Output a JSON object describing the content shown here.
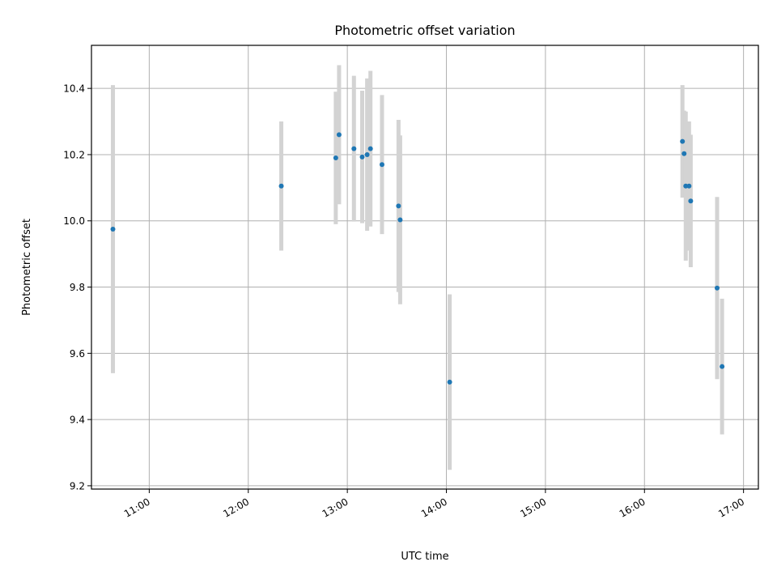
{
  "chart_data": {
    "type": "scatter",
    "title": "Photometric offset variation",
    "xlabel": "UTC time",
    "ylabel": "Photometric offset",
    "x_tick_labels": [
      "11:00",
      "12:00",
      "13:00",
      "14:00",
      "15:00",
      "16:00",
      "17:00"
    ],
    "y_tick_labels": [
      "9.2",
      "9.4",
      "9.6",
      "9.8",
      "10.0",
      "10.2",
      "10.4"
    ],
    "xlim": [
      "10:25",
      "17:09"
    ],
    "ylim": [
      9.19,
      10.53
    ],
    "grid": true,
    "point_color": "#1f77b4",
    "errorbar_color": "#d3d3d3",
    "points": [
      {
        "x": "10:38",
        "y": 9.975,
        "err": 0.435
      },
      {
        "x": "12:20",
        "y": 10.105,
        "err": 0.195
      },
      {
        "x": "12:53",
        "y": 10.19,
        "err": 0.2
      },
      {
        "x": "12:55",
        "y": 10.26,
        "err": 0.21
      },
      {
        "x": "13:04",
        "y": 10.218,
        "err": 0.22
      },
      {
        "x": "13:09",
        "y": 10.193,
        "err": 0.2
      },
      {
        "x": "13:12",
        "y": 10.2,
        "err": 0.23
      },
      {
        "x": "13:14",
        "y": 10.218,
        "err": 0.235
      },
      {
        "x": "13:21",
        "y": 10.17,
        "err": 0.21
      },
      {
        "x": "13:31",
        "y": 10.045,
        "err": 0.26
      },
      {
        "x": "13:32",
        "y": 10.003,
        "err": 0.255
      },
      {
        "x": "14:02",
        "y": 9.513,
        "err": 0.265
      },
      {
        "x": "16:23",
        "y": 10.24,
        "err": 0.17
      },
      {
        "x": "16:24",
        "y": 10.203,
        "err": 0.13
      },
      {
        "x": "16:25",
        "y": 10.105,
        "err": 0.225
      },
      {
        "x": "16:27",
        "y": 10.105,
        "err": 0.195
      },
      {
        "x": "16:28",
        "y": 10.06,
        "err": 0.2
      },
      {
        "x": "16:44",
        "y": 9.797,
        "err": 0.275
      },
      {
        "x": "16:47",
        "y": 9.56,
        "err": 0.205
      }
    ]
  }
}
